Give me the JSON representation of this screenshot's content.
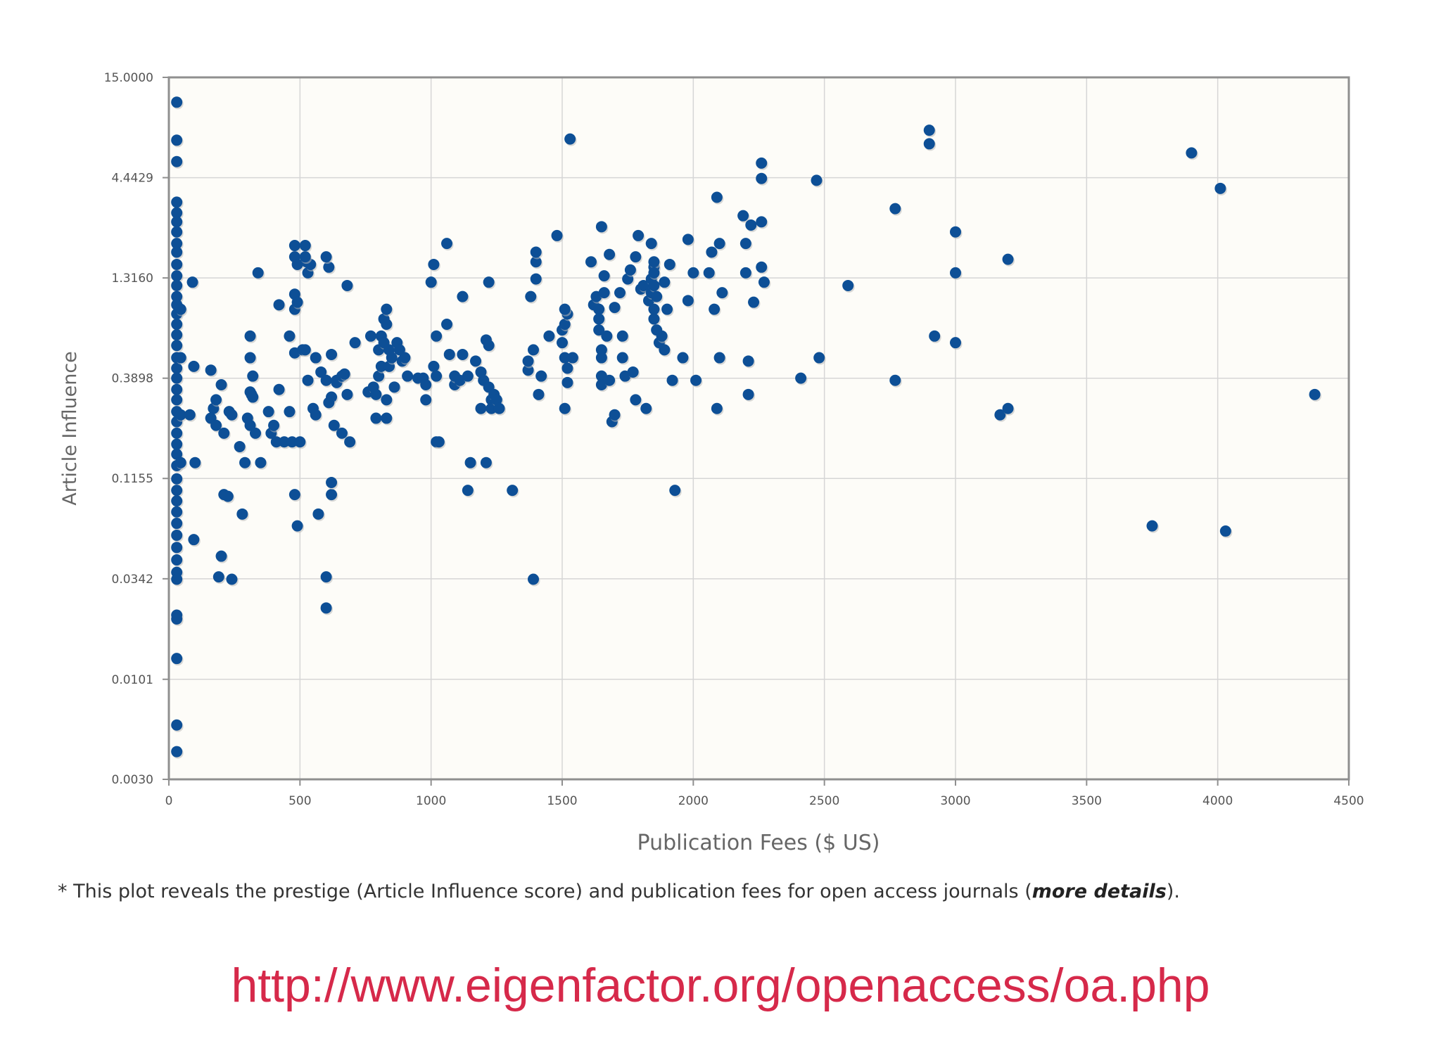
{
  "chart_data": {
    "type": "scatter",
    "xlabel": "Publication Fees ($ US)",
    "ylabel": "Article Influence",
    "x_ticks": [
      "0",
      "500",
      "1000",
      "1500",
      "2000",
      "2500",
      "3000",
      "3500",
      "4000",
      "4500"
    ],
    "y_ticks": [
      "0.0030",
      "0.0101",
      "0.0342",
      "0.1155",
      "0.3898",
      "1.3160",
      "4.4429",
      "15.0000"
    ],
    "xlim": [
      0,
      4500
    ],
    "ylim": [
      0.003,
      15
    ],
    "y_scale": "log",
    "grid": true,
    "marker_color": "#0d4f96",
    "points": [
      [
        30,
        11.1
      ],
      [
        30,
        7.0
      ],
      [
        30,
        5.4
      ],
      [
        30,
        3.3
      ],
      [
        30,
        2.9
      ],
      [
        30,
        2.6
      ],
      [
        30,
        2.3
      ],
      [
        30,
        2.0
      ],
      [
        30,
        1.8
      ],
      [
        30,
        1.55
      ],
      [
        30,
        1.35
      ],
      [
        30,
        1.2
      ],
      [
        30,
        1.05
      ],
      [
        30,
        0.95
      ],
      [
        30,
        0.85
      ],
      [
        30,
        0.75
      ],
      [
        30,
        0.66
      ],
      [
        30,
        0.58
      ],
      [
        30,
        0.5
      ],
      [
        30,
        0.44
      ],
      [
        30,
        0.39
      ],
      [
        30,
        0.34
      ],
      [
        30,
        0.3
      ],
      [
        30,
        0.26
      ],
      [
        30,
        0.23
      ],
      [
        30,
        0.2
      ],
      [
        30,
        0.175
      ],
      [
        30,
        0.155
      ],
      [
        30,
        0.135
      ],
      [
        30,
        0.115
      ],
      [
        30,
        0.1
      ],
      [
        30,
        0.088
      ],
      [
        30,
        0.077
      ],
      [
        30,
        0.067
      ],
      [
        30,
        0.058
      ],
      [
        30,
        0.05
      ],
      [
        30,
        0.043
      ],
      [
        30,
        0.037
      ],
      [
        30,
        0.034
      ],
      [
        30,
        0.022
      ],
      [
        30,
        0.021
      ],
      [
        30,
        0.013
      ],
      [
        30,
        0.0058
      ],
      [
        30,
        0.0042
      ],
      [
        45,
        0.9
      ],
      [
        45,
        0.5
      ],
      [
        45,
        0.25
      ],
      [
        45,
        0.14
      ],
      [
        90,
        1.25
      ],
      [
        80,
        0.25
      ],
      [
        95,
        0.45
      ],
      [
        100,
        0.14
      ],
      [
        95,
        0.055
      ],
      [
        160,
        0.43
      ],
      [
        170,
        0.27
      ],
      [
        180,
        0.3
      ],
      [
        160,
        0.24
      ],
      [
        180,
        0.22
      ],
      [
        200,
        0.36
      ],
      [
        190,
        0.035
      ],
      [
        210,
        0.2
      ],
      [
        200,
        0.045
      ],
      [
        210,
        0.095
      ],
      [
        225,
        0.093
      ],
      [
        230,
        0.26
      ],
      [
        240,
        0.25
      ],
      [
        240,
        0.034
      ],
      [
        270,
        0.17
      ],
      [
        280,
        0.075
      ],
      [
        290,
        0.14
      ],
      [
        300,
        0.24
      ],
      [
        310,
        0.22
      ],
      [
        310,
        0.33
      ],
      [
        315,
        0.32
      ],
      [
        320,
        0.31
      ],
      [
        310,
        0.5
      ],
      [
        310,
        0.65
      ],
      [
        320,
        0.4
      ],
      [
        330,
        0.2
      ],
      [
        340,
        1.4
      ],
      [
        350,
        0.14
      ],
      [
        380,
        0.26
      ],
      [
        390,
        0.2
      ],
      [
        400,
        0.22
      ],
      [
        420,
        0.95
      ],
      [
        410,
        0.18
      ],
      [
        420,
        0.34
      ],
      [
        440,
        0.18
      ],
      [
        460,
        0.65
      ],
      [
        460,
        0.26
      ],
      [
        470,
        0.18
      ],
      [
        480,
        1.95
      ],
      [
        480,
        1.7
      ],
      [
        490,
        1.55
      ],
      [
        480,
        1.08
      ],
      [
        480,
        0.9
      ],
      [
        490,
        0.98
      ],
      [
        480,
        0.53
      ],
      [
        480,
        0.095
      ],
      [
        490,
        0.065
      ],
      [
        500,
        0.18
      ],
      [
        510,
        0.55
      ],
      [
        520,
        0.55
      ],
      [
        520,
        1.95
      ],
      [
        525,
        1.6
      ],
      [
        530,
        1.4
      ],
      [
        540,
        1.55
      ],
      [
        520,
        1.7
      ],
      [
        530,
        0.38
      ],
      [
        550,
        0.27
      ],
      [
        560,
        0.5
      ],
      [
        560,
        0.25
      ],
      [
        580,
        0.42
      ],
      [
        570,
        0.075
      ],
      [
        600,
        0.38
      ],
      [
        620,
        0.31
      ],
      [
        610,
        0.29
      ],
      [
        620,
        0.52
      ],
      [
        630,
        0.22
      ],
      [
        640,
        0.38
      ],
      [
        620,
        0.095
      ],
      [
        620,
        0.11
      ],
      [
        600,
        0.035
      ],
      [
        600,
        0.024
      ],
      [
        610,
        1.5
      ],
      [
        600,
        1.7
      ],
      [
        640,
        0.37
      ],
      [
        660,
        0.4
      ],
      [
        670,
        0.41
      ],
      [
        660,
        0.2
      ],
      [
        680,
        1.2
      ],
      [
        680,
        0.32
      ],
      [
        690,
        0.18
      ],
      [
        710,
        0.6
      ],
      [
        760,
        0.33
      ],
      [
        770,
        0.65
      ],
      [
        780,
        0.35
      ],
      [
        790,
        0.32
      ],
      [
        790,
        0.24
      ],
      [
        800,
        0.55
      ],
      [
        800,
        0.4
      ],
      [
        810,
        0.45
      ],
      [
        810,
        0.65
      ],
      [
        820,
        0.6
      ],
      [
        820,
        0.8
      ],
      [
        830,
        0.75
      ],
      [
        830,
        0.9
      ],
      [
        830,
        0.24
      ],
      [
        830,
        0.3
      ],
      [
        840,
        0.45
      ],
      [
        840,
        0.55
      ],
      [
        850,
        0.5
      ],
      [
        860,
        0.35
      ],
      [
        870,
        0.6
      ],
      [
        880,
        0.55
      ],
      [
        890,
        0.48
      ],
      [
        900,
        0.5
      ],
      [
        910,
        0.4
      ],
      [
        950,
        0.39
      ],
      [
        970,
        0.39
      ],
      [
        980,
        0.3
      ],
      [
        980,
        0.36
      ],
      [
        1000,
        1.25
      ],
      [
        1010,
        1.55
      ],
      [
        1010,
        0.45
      ],
      [
        1020,
        0.4
      ],
      [
        1020,
        0.65
      ],
      [
        1020,
        0.18
      ],
      [
        1030,
        0.18
      ],
      [
        1060,
        2.0
      ],
      [
        1060,
        0.75
      ],
      [
        1070,
        0.52
      ],
      [
        1090,
        0.36
      ],
      [
        1090,
        0.4
      ],
      [
        1110,
        0.38
      ],
      [
        1120,
        1.05
      ],
      [
        1120,
        0.52
      ],
      [
        1140,
        0.4
      ],
      [
        1150,
        0.14
      ],
      [
        1140,
        0.1
      ],
      [
        1170,
        0.48
      ],
      [
        1190,
        0.42
      ],
      [
        1190,
        0.27
      ],
      [
        1200,
        0.38
      ],
      [
        1210,
        0.62
      ],
      [
        1220,
        0.58
      ],
      [
        1220,
        0.35
      ],
      [
        1220,
        1.25
      ],
      [
        1210,
        0.14
      ],
      [
        1230,
        0.3
      ],
      [
        1230,
        0.27
      ],
      [
        1240,
        0.32
      ],
      [
        1250,
        0.3
      ],
      [
        1260,
        0.27
      ],
      [
        1310,
        0.1
      ],
      [
        1370,
        0.43
      ],
      [
        1370,
        0.48
      ],
      [
        1380,
        1.05
      ],
      [
        1390,
        0.55
      ],
      [
        1390,
        0.034
      ],
      [
        1400,
        1.3
      ],
      [
        1400,
        1.6
      ],
      [
        1400,
        1.8
      ],
      [
        1410,
        0.32
      ],
      [
        1420,
        0.4
      ],
      [
        1450,
        0.65
      ],
      [
        1480,
        2.2
      ],
      [
        1500,
        0.6
      ],
      [
        1500,
        0.7
      ],
      [
        1510,
        0.75
      ],
      [
        1520,
        0.85
      ],
      [
        1510,
        0.9
      ],
      [
        1510,
        0.5
      ],
      [
        1520,
        0.37
      ],
      [
        1510,
        0.27
      ],
      [
        1520,
        0.44
      ],
      [
        1530,
        7.1
      ],
      [
        1540,
        0.5
      ],
      [
        1610,
        1.6
      ],
      [
        1620,
        0.95
      ],
      [
        1630,
        1.05
      ],
      [
        1640,
        0.9
      ],
      [
        1640,
        0.8
      ],
      [
        1640,
        0.7
      ],
      [
        1650,
        0.55
      ],
      [
        1650,
        0.5
      ],
      [
        1650,
        0.4
      ],
      [
        1650,
        0.36
      ],
      [
        1650,
        2.45
      ],
      [
        1660,
        1.35
      ],
      [
        1660,
        1.1
      ],
      [
        1670,
        0.65
      ],
      [
        1680,
        0.38
      ],
      [
        1680,
        1.75
      ],
      [
        1700,
        0.92
      ],
      [
        1690,
        0.23
      ],
      [
        1700,
        0.25
      ],
      [
        1720,
        1.1
      ],
      [
        1730,
        0.5
      ],
      [
        1730,
        0.65
      ],
      [
        1740,
        0.4
      ],
      [
        1750,
        1.3
      ],
      [
        1760,
        1.45
      ],
      [
        1770,
        0.42
      ],
      [
        1780,
        0.3
      ],
      [
        1780,
        1.7
      ],
      [
        1790,
        2.2
      ],
      [
        1800,
        1.15
      ],
      [
        1810,
        1.2
      ],
      [
        1820,
        0.27
      ],
      [
        1830,
        1.0
      ],
      [
        1840,
        1.1
      ],
      [
        1840,
        1.3
      ],
      [
        1840,
        2.0
      ],
      [
        1850,
        1.5
      ],
      [
        1850,
        1.6
      ],
      [
        1850,
        1.4
      ],
      [
        1850,
        1.2
      ],
      [
        1850,
        0.9
      ],
      [
        1850,
        0.8
      ],
      [
        1860,
        1.05
      ],
      [
        1860,
        0.7
      ],
      [
        1870,
        0.6
      ],
      [
        1880,
        0.65
      ],
      [
        1890,
        1.25
      ],
      [
        1890,
        0.55
      ],
      [
        1900,
        0.9
      ],
      [
        1910,
        1.55
      ],
      [
        1920,
        0.38
      ],
      [
        1930,
        0.1
      ],
      [
        1960,
        0.5
      ],
      [
        1980,
        2.1
      ],
      [
        1980,
        1.0
      ],
      [
        2000,
        1.4
      ],
      [
        2010,
        0.38
      ],
      [
        2060,
        1.4
      ],
      [
        2070,
        1.8
      ],
      [
        2080,
        0.9
      ],
      [
        2090,
        0.27
      ],
      [
        2090,
        3.5
      ],
      [
        2100,
        2.0
      ],
      [
        2110,
        1.1
      ],
      [
        2100,
        0.5
      ],
      [
        2190,
        2.8
      ],
      [
        2200,
        2.0
      ],
      [
        2200,
        1.4
      ],
      [
        2210,
        0.48
      ],
      [
        2210,
        0.32
      ],
      [
        2220,
        2.5
      ],
      [
        2230,
        0.98
      ],
      [
        2260,
        1.5
      ],
      [
        2260,
        2.6
      ],
      [
        2260,
        4.4
      ],
      [
        2260,
        5.3
      ],
      [
        2270,
        1.25
      ],
      [
        2410,
        0.39
      ],
      [
        2470,
        4.3
      ],
      [
        2480,
        0.5
      ],
      [
        2590,
        1.2
      ],
      [
        2770,
        3.05
      ],
      [
        2770,
        0.38
      ],
      [
        2900,
        7.9
      ],
      [
        2900,
        6.7
      ],
      [
        2920,
        0.65
      ],
      [
        3000,
        2.3
      ],
      [
        3000,
        1.4
      ],
      [
        3000,
        0.6
      ],
      [
        3170,
        0.25
      ],
      [
        3200,
        0.27
      ],
      [
        3200,
        1.65
      ],
      [
        3750,
        0.065
      ],
      [
        3900,
        6.0
      ],
      [
        4010,
        3.9
      ],
      [
        4030,
        0.061
      ],
      [
        4370,
        0.32
      ]
    ]
  },
  "footnote": {
    "prefix": "* This plot reveals the prestige (Article Influence score) and publication fees for open access journals (",
    "link": "more details",
    "suffix": ")."
  },
  "source_url": "http://www.eigenfactor.org/openaccess/oa.php"
}
